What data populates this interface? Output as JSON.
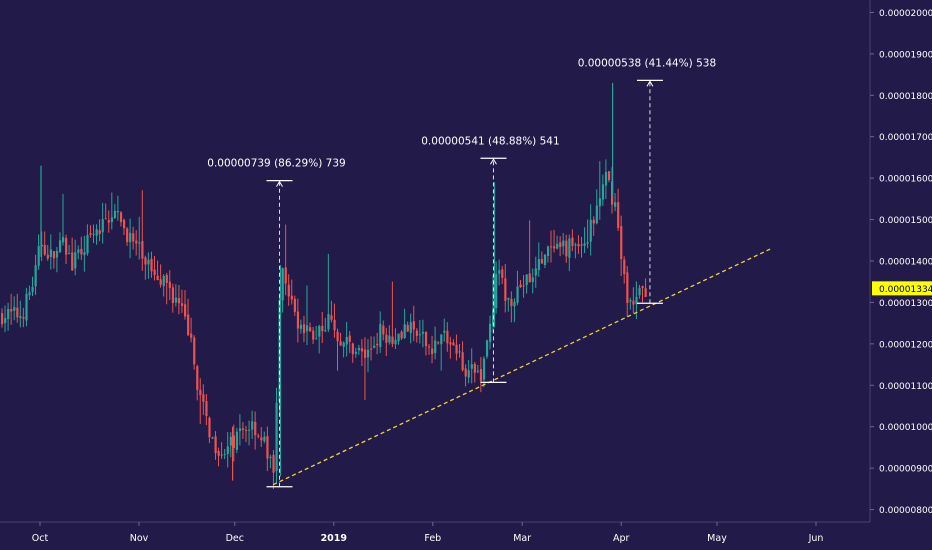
{
  "colors": {
    "background": "#221a48",
    "bull": "#26a69a",
    "bear": "#ef5350",
    "trendline": "#f2d13a",
    "measure": "#ffffff",
    "axis_text": "#ffffff",
    "price_badge": "#ffff00",
    "price_badge_text": "#000000"
  },
  "chart_data": {
    "type": "candlestick",
    "title": "",
    "xlabel": "",
    "ylabel": "",
    "ylim": [
      7.7e-06,
      2.03e-05
    ],
    "grid": false,
    "x_ticks": [
      "Oct",
      "Nov",
      "Dec",
      "2019",
      "Feb",
      "Mar",
      "Apr",
      "May",
      "Jun"
    ],
    "y_ticks": [
      "0.00000800",
      "0.00000900",
      "0.00001000",
      "0.00001100",
      "0.00001200",
      "0.00001300",
      "0.00001400",
      "0.00001500",
      "0.00001600",
      "0.00001700",
      "0.00001800",
      "0.00001900",
      "0.00002000"
    ],
    "y_tick_values": [
      8e-06,
      9e-06,
      1e-05,
      1.1e-05,
      1.2e-05,
      1.3e-05,
      1.4e-05,
      1.5e-05,
      1.6e-05,
      1.7e-05,
      1.8e-05,
      1.9e-05,
      2e-05
    ],
    "last_price": {
      "label": "0.00001334",
      "value": 1.334e-05
    },
    "price_path": [
      [
        "2018-09-25",
        1.27e-05
      ],
      [
        "2018-09-29",
        1.36e-05
      ],
      [
        "2018-10-01",
        1.45e-05
      ],
      [
        "2018-10-04",
        1.41e-05
      ],
      [
        "2018-10-08",
        1.44e-05
      ],
      [
        "2018-10-11",
        1.39e-05
      ],
      [
        "2018-10-15",
        1.44e-05
      ],
      [
        "2018-10-19",
        1.47e-05
      ],
      [
        "2018-10-23",
        1.52e-05
      ],
      [
        "2018-10-27",
        1.48e-05
      ],
      [
        "2018-10-31",
        1.43e-05
      ],
      [
        "2018-11-04",
        1.39e-05
      ],
      [
        "2018-11-08",
        1.36e-05
      ],
      [
        "2018-11-12",
        1.31e-05
      ],
      [
        "2018-11-16",
        1.24e-05
      ],
      [
        "2018-11-20",
        1.06e-05
      ],
      [
        "2018-11-24",
        9.6e-06
      ],
      [
        "2018-11-28",
        9.4e-06
      ],
      [
        "2018-12-02",
        9.8e-06
      ],
      [
        "2018-12-06",
        1.01e-05
      ],
      [
        "2018-12-10",
        9.6e-06
      ],
      [
        "2018-12-13",
        8.8e-06
      ],
      [
        "2018-12-15",
        1.38e-05
      ],
      [
        "2018-12-18",
        1.3e-05
      ],
      [
        "2018-12-22",
        1.23e-05
      ],
      [
        "2018-12-26",
        1.22e-05
      ],
      [
        "2018-12-30",
        1.26e-05
      ],
      [
        "2019-01-03",
        1.21e-05
      ],
      [
        "2019-01-07",
        1.19e-05
      ],
      [
        "2019-01-11",
        1.17e-05
      ],
      [
        "2019-01-15",
        1.23e-05
      ],
      [
        "2019-01-19",
        1.22e-05
      ],
      [
        "2019-01-23",
        1.24e-05
      ],
      [
        "2019-01-27",
        1.22e-05
      ],
      [
        "2019-01-31",
        1.19e-05
      ],
      [
        "2019-02-04",
        1.22e-05
      ],
      [
        "2019-02-08",
        1.18e-05
      ],
      [
        "2019-02-12",
        1.13e-05
      ],
      [
        "2019-02-16",
        1.13e-05
      ],
      [
        "2019-02-19",
        1.26e-05
      ],
      [
        "2019-02-21",
        1.38e-05
      ],
      [
        "2019-02-24",
        1.3e-05
      ],
      [
        "2019-02-28",
        1.34e-05
      ],
      [
        "2019-03-04",
        1.36e-05
      ],
      [
        "2019-03-08",
        1.42e-05
      ],
      [
        "2019-03-12",
        1.42e-05
      ],
      [
        "2019-03-16",
        1.44e-05
      ],
      [
        "2019-03-20",
        1.44e-05
      ],
      [
        "2019-03-24",
        1.52e-05
      ],
      [
        "2019-03-27",
        1.6e-05
      ],
      [
        "2019-03-30",
        1.53e-05
      ],
      [
        "2019-04-01",
        1.38e-05
      ],
      [
        "2019-04-03",
        1.3e-05
      ],
      [
        "2019-04-06",
        1.31e-05
      ],
      [
        "2019-04-08",
        1.334e-05
      ]
    ],
    "trendline": {
      "start": [
        "2018-12-13",
        8.6e-06
      ],
      "end": [
        "2019-05-18",
        1.43e-05
      ]
    },
    "measurements": [
      {
        "date": "2018-12-15",
        "from": 8.55e-06,
        "to": 1.594e-05,
        "label": "0.00000739 (86.29%) 739"
      },
      {
        "date": "2019-02-20",
        "from": 1.107e-05,
        "to": 1.648e-05,
        "label": "0.00000541 (48.88%) 541"
      },
      {
        "date": "2019-04-10",
        "from": 1.298e-05,
        "to": 1.836e-05,
        "label": "0.00000538 (41.44%) 538"
      }
    ]
  }
}
